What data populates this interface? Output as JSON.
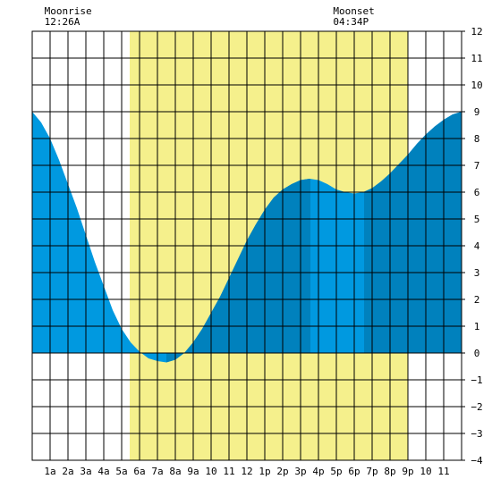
{
  "chart_data": {
    "type": "area",
    "annotations": [
      {
        "label": "Moonrise",
        "time": "12:26A",
        "x": 0.43
      },
      {
        "label": "Moonset",
        "time": "04:34P",
        "x": 16.57
      }
    ],
    "x_ticks": [
      {
        "x": 1,
        "label": "1a"
      },
      {
        "x": 2,
        "label": "2a"
      },
      {
        "x": 3,
        "label": "3a"
      },
      {
        "x": 4,
        "label": "4a"
      },
      {
        "x": 5,
        "label": "5a"
      },
      {
        "x": 6,
        "label": "6a"
      },
      {
        "x": 7,
        "label": "7a"
      },
      {
        "x": 8,
        "label": "8a"
      },
      {
        "x": 9,
        "label": "9a"
      },
      {
        "x": 10,
        "label": "10"
      },
      {
        "x": 11,
        "label": "11"
      },
      {
        "x": 12,
        "label": "12"
      },
      {
        "x": 13,
        "label": "1p"
      },
      {
        "x": 14,
        "label": "2p"
      },
      {
        "x": 15,
        "label": "3p"
      },
      {
        "x": 16,
        "label": "4p"
      },
      {
        "x": 17,
        "label": "5p"
      },
      {
        "x": 18,
        "label": "6p"
      },
      {
        "x": 19,
        "label": "7p"
      },
      {
        "x": 20,
        "label": "8p"
      },
      {
        "x": 21,
        "label": "9p"
      },
      {
        "x": 22,
        "label": "10"
      },
      {
        "x": 23,
        "label": "11"
      }
    ],
    "y_ticks": [
      -4,
      -3,
      -2,
      -1,
      0,
      1,
      2,
      3,
      4,
      5,
      6,
      7,
      8,
      9,
      10,
      11,
      12
    ],
    "xlim": [
      0,
      24
    ],
    "ylim": [
      -4,
      12
    ],
    "grid": true,
    "daylight": {
      "start": 5.45,
      "end": 21.0
    },
    "moon_up_shading": [
      {
        "start": 7.5,
        "end": 15.55
      },
      {
        "start": 18.55,
        "end": 24
      }
    ],
    "series": [
      {
        "x": [
          0,
          0.5,
          1,
          1.5,
          2,
          2.5,
          3,
          3.5,
          4,
          4.5,
          5,
          5.5,
          6,
          6.5,
          7,
          7.5,
          8,
          8.5,
          9,
          9.5,
          10,
          10.5,
          11,
          11.5,
          12,
          12.5,
          13,
          13.5,
          14,
          14.5,
          15,
          15.5,
          16,
          16.5,
          17,
          17.5,
          18,
          18.5,
          19,
          19.5,
          20,
          20.5,
          21,
          21.5,
          22,
          22.5,
          23,
          23.5,
          24
        ],
        "y": [
          9.0,
          8.6,
          8.0,
          7.2,
          6.3,
          5.4,
          4.4,
          3.4,
          2.5,
          1.6,
          0.9,
          0.4,
          0.05,
          -0.2,
          -0.3,
          -0.35,
          -0.25,
          0.0,
          0.4,
          0.9,
          1.5,
          2.1,
          2.8,
          3.5,
          4.2,
          4.8,
          5.35,
          5.8,
          6.1,
          6.3,
          6.45,
          6.5,
          6.45,
          6.3,
          6.1,
          6.0,
          5.95,
          6.0,
          6.15,
          6.4,
          6.7,
          7.05,
          7.4,
          7.8,
          8.15,
          8.45,
          8.7,
          8.9,
          9.0
        ],
        "color_light": "#0099e0",
        "color_dark": "#0081bd"
      }
    ],
    "colors": {
      "daylight": "#f5f08c",
      "grid": "#000000",
      "tide_light": "#0099e0",
      "tide_dark": "#0081bd"
    }
  }
}
